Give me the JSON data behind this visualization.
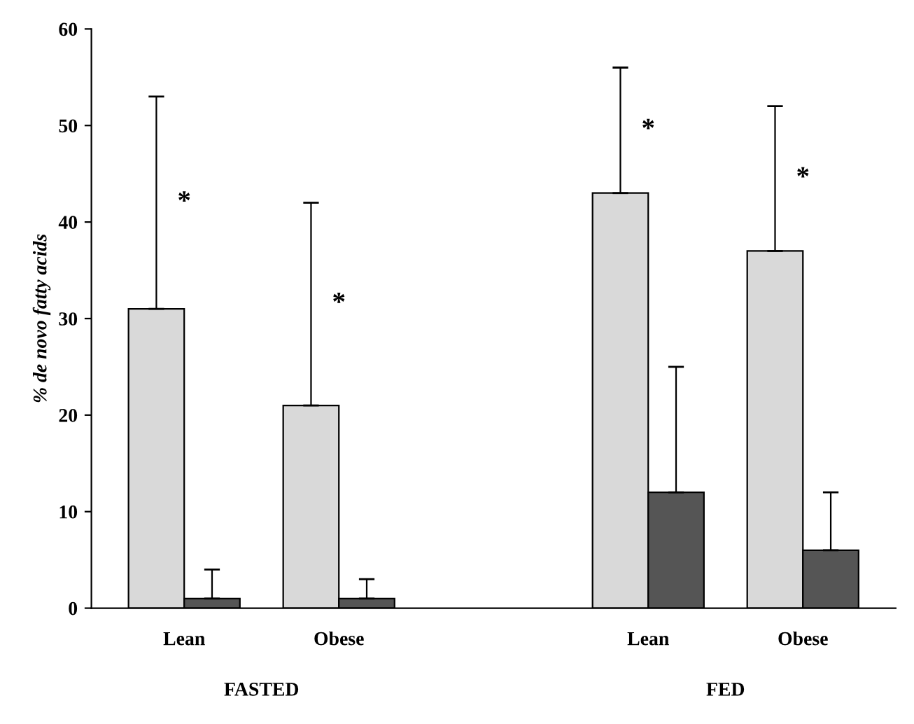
{
  "chart_data": {
    "type": "bar",
    "ylabel": "% de novo fatty acids",
    "categories": [
      "Lean",
      "Obese",
      null,
      "Lean",
      "Obese"
    ],
    "series": [
      {
        "color": "#d9d9d9",
        "values": [
          31,
          21,
          null,
          43,
          37
        ],
        "errors": [
          [
            31,
            53
          ],
          [
            21,
            42
          ],
          null,
          [
            43,
            56
          ],
          [
            37,
            52
          ]
        ]
      },
      {
        "color": "#555555",
        "values": [
          1,
          1,
          null,
          12,
          6
        ],
        "errors": [
          [
            1,
            4
          ],
          [
            1,
            3
          ],
          null,
          [
            12,
            25
          ],
          [
            6,
            12
          ]
        ]
      }
    ],
    "annotations": [
      "*",
      "*",
      "*",
      "*",
      "FASTED",
      "FED"
    ],
    "ylim": [
      0,
      60
    ],
    "yticks": [
      0,
      10,
      20,
      30,
      40,
      50,
      60
    ],
    "grid": false,
    "legend": false
  }
}
